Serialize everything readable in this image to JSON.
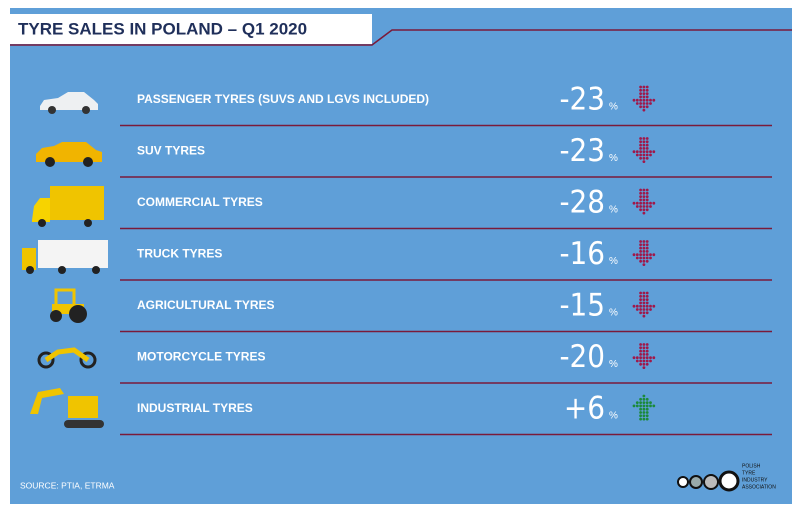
{
  "header": {
    "title": "TYRE SALES IN POLAND – Q1 2020"
  },
  "rows": [
    {
      "label": "PASSENGER TYRES (SUVS AND LGVS INCLUDED)",
      "value": "-23",
      "unit": "%",
      "direction": "down"
    },
    {
      "label": "SUV TYRES",
      "value": "-23",
      "unit": "%",
      "direction": "down"
    },
    {
      "label": "COMMERCIAL TYRES",
      "value": "-28",
      "unit": "%",
      "direction": "down"
    },
    {
      "label": "TRUCK TYRES",
      "value": "-16",
      "unit": "%",
      "direction": "down"
    },
    {
      "label": "AGRICULTURAL TYRES",
      "value": "-15",
      "unit": "%",
      "direction": "down"
    },
    {
      "label": "MOTORCYCLE TYRES",
      "value": "-20",
      "unit": "%",
      "direction": "down"
    },
    {
      "label": "INDUSTRIAL TYRES",
      "value": "+6",
      "unit": "%",
      "direction": "up"
    }
  ],
  "footer": {
    "source": "SOURCE: PTIA, ETRMA",
    "logo": [
      "POLISH",
      "TYRE",
      "INDUSTRY",
      "ASSOCIATION"
    ]
  }
}
